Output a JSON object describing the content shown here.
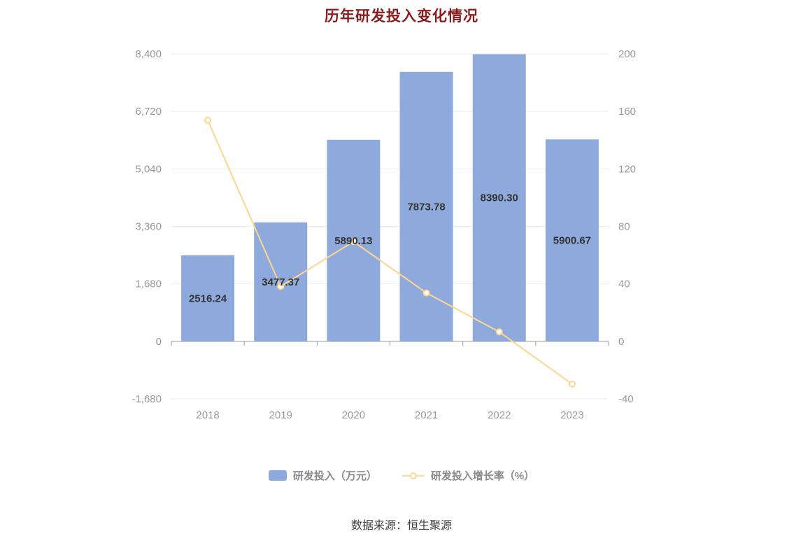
{
  "chart_data": {
    "type": "bar+line",
    "title": "历年研发投入变化情况",
    "source": "数据来源：恒生聚源",
    "categories": [
      "2018",
      "2019",
      "2020",
      "2021",
      "2022",
      "2023"
    ],
    "series": [
      {
        "name": "研发投入（万元）",
        "type": "bar",
        "axis": "left",
        "values": [
          2516.24,
          3477.37,
          5890.13,
          7873.78,
          8390.3,
          5900.67
        ],
        "labels": [
          "2516.24",
          "3477.37",
          "5890.13",
          "7873.78",
          "8390.30",
          "5900.67"
        ]
      },
      {
        "name": "研发投入增长率（%）",
        "type": "line",
        "axis": "right",
        "values": [
          153.8,
          38.2,
          69.4,
          33.7,
          6.6,
          -29.7
        ]
      }
    ],
    "left_axis": {
      "min": -1680,
      "max": 8400,
      "tick_values": [
        8400,
        6720,
        5040,
        3360,
        1680,
        0,
        -1680
      ],
      "tick_labels": [
        "8,400",
        "6,720",
        "5,040",
        "3,360",
        "1,680",
        "0",
        "-1,680"
      ]
    },
    "right_axis": {
      "min": -40,
      "max": 200,
      "tick_values": [
        200,
        160,
        120,
        80,
        40,
        0,
        -40
      ],
      "tick_labels": [
        "200",
        "160",
        "120",
        "80",
        "40",
        "0",
        "-40"
      ]
    },
    "legend_position": "bottom-center",
    "grid": true,
    "colors": {
      "bar": "#8ea9dc",
      "line": "#ffd591",
      "title": "#8c1c1c",
      "bar_label": "#333333",
      "axis_label": "#999999",
      "axis_line": "#999999",
      "grid": "#e9edf3",
      "legend_text": "#8a8a8a",
      "source_text": "#404040"
    }
  }
}
